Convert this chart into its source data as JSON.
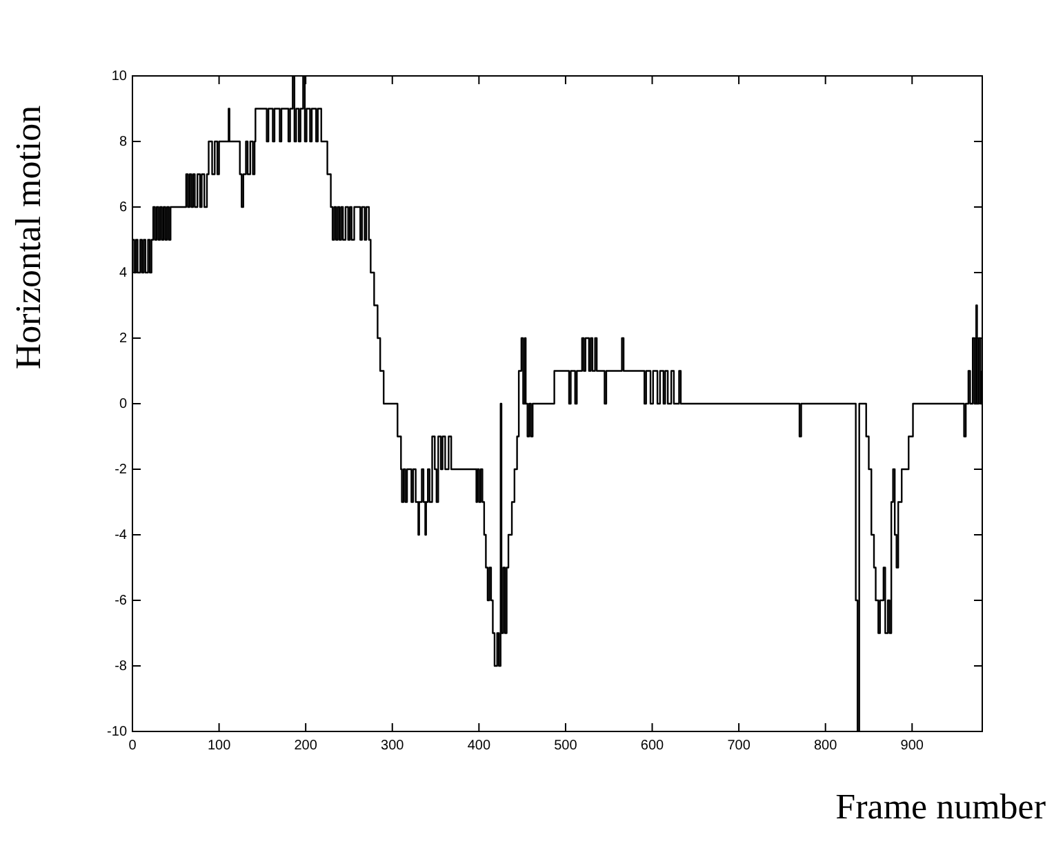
{
  "chart_data": {
    "type": "step",
    "xlabel": "Frame number",
    "ylabel": "Horizontal motion",
    "xlim": [
      0,
      981
    ],
    "xticks": [
      0,
      100,
      200,
      300,
      400,
      500,
      600,
      700,
      800,
      900
    ],
    "ylim": [
      -10,
      10
    ],
    "yticks": [
      -10,
      -8,
      -6,
      -4,
      -2,
      0,
      2,
      4,
      6,
      8,
      10
    ],
    "grid": false,
    "legend": false,
    "marker": "none",
    "line_style": "solid",
    "series": [
      {
        "color": "#000000",
        "x": [
          0,
          2,
          4,
          6,
          9,
          11,
          13,
          15,
          18,
          20,
          22,
          24,
          26,
          28,
          30,
          32,
          34,
          36,
          38,
          40,
          42,
          44,
          62,
          64,
          66,
          68,
          70,
          72,
          75,
          78,
          80,
          83,
          86,
          88,
          92,
          95,
          98,
          100,
          111,
          112,
          124,
          126,
          128,
          131,
          133,
          136,
          139,
          141,
          142,
          150,
          155,
          157,
          162,
          164,
          170,
          172,
          180,
          182,
          185,
          187,
          189,
          192,
          194,
          197,
          199,
          201,
          205,
          207,
          212,
          214,
          218,
          225,
          229,
          231,
          233,
          235,
          237,
          239,
          241,
          243,
          246,
          249,
          251,
          253,
          256,
          263,
          265,
          268,
          270,
          273,
          275,
          279,
          283,
          286,
          290,
          306,
          310,
          311,
          313,
          315,
          317,
          322,
          324,
          327,
          330,
          331,
          334,
          336,
          338,
          339,
          341,
          343,
          346,
          349,
          351,
          353,
          356,
          358,
          361,
          365,
          368,
          397,
          398,
          400,
          402,
          404,
          406,
          408,
          410,
          412,
          414,
          416,
          418,
          421,
          423,
          425,
          426,
          428,
          430,
          432,
          434,
          438,
          441,
          444,
          446,
          449,
          451,
          453,
          454,
          456,
          458,
          460,
          462,
          487,
          504,
          506,
          511,
          513,
          519,
          521,
          523,
          527,
          529,
          531,
          534,
          536,
          545,
          547,
          565,
          567,
          591,
          593,
          598,
          601,
          606,
          609,
          613,
          615,
          618,
          622,
          625,
          631,
          633,
          770,
          772,
          835,
          837,
          839,
          847,
          850,
          853,
          856,
          858,
          861,
          863,
          867,
          869,
          872,
          874,
          876,
          878,
          880,
          882,
          884,
          888,
          896,
          901,
          960,
          962,
          965,
          967,
          970,
          972,
          974,
          975,
          977,
          979,
          980
        ],
        "values": [
          5,
          4,
          5,
          4,
          5,
          4,
          5,
          4,
          5,
          4,
          5,
          6,
          5,
          6,
          5,
          6,
          5,
          6,
          5,
          6,
          5,
          6,
          7,
          6,
          7,
          6,
          7,
          6,
          7,
          6,
          7,
          6,
          7,
          8,
          7,
          8,
          7,
          8,
          9,
          8,
          7,
          6,
          7,
          8,
          7,
          8,
          7,
          8,
          9,
          9,
          8,
          9,
          8,
          9,
          8,
          9,
          8,
          9,
          10,
          8,
          9,
          8,
          9,
          10,
          8,
          9,
          8,
          9,
          8,
          9,
          8,
          7,
          6,
          5,
          6,
          5,
          6,
          5,
          6,
          5,
          6,
          5,
          6,
          5,
          6,
          5,
          6,
          5,
          6,
          5,
          4,
          3,
          2,
          1,
          0,
          -1,
          -2,
          -3,
          -2,
          -3,
          -2,
          -3,
          -2,
          -3,
          -4,
          -3,
          -2,
          -3,
          -4,
          -3,
          -2,
          -3,
          -1,
          -2,
          -3,
          -1,
          -2,
          -1,
          -2,
          -1,
          -2,
          -3,
          -2,
          -3,
          -2,
          -3,
          -4,
          -5,
          -6,
          -5,
          -6,
          -7,
          -8,
          -7,
          -8,
          0,
          -7,
          -5,
          -7,
          -5,
          -4,
          -3,
          -2,
          -1,
          1,
          2,
          0,
          2,
          0,
          -1,
          0,
          -1,
          0,
          1,
          0,
          1,
          0,
          1,
          2,
          1,
          2,
          1,
          2,
          1,
          2,
          1,
          0,
          1,
          2,
          1,
          0,
          1,
          0,
          1,
          0,
          1,
          0,
          1,
          0,
          1,
          0,
          1,
          0,
          -1,
          0,
          -6,
          -10,
          0,
          -1,
          -2,
          -4,
          -5,
          -6,
          -7,
          -6,
          -5,
          -7,
          -6,
          -7,
          -3,
          -2,
          -4,
          -5,
          -3,
          -2,
          -1,
          0,
          -1,
          0,
          1,
          0,
          2,
          0,
          3,
          0,
          2,
          0,
          1
        ]
      }
    ]
  }
}
